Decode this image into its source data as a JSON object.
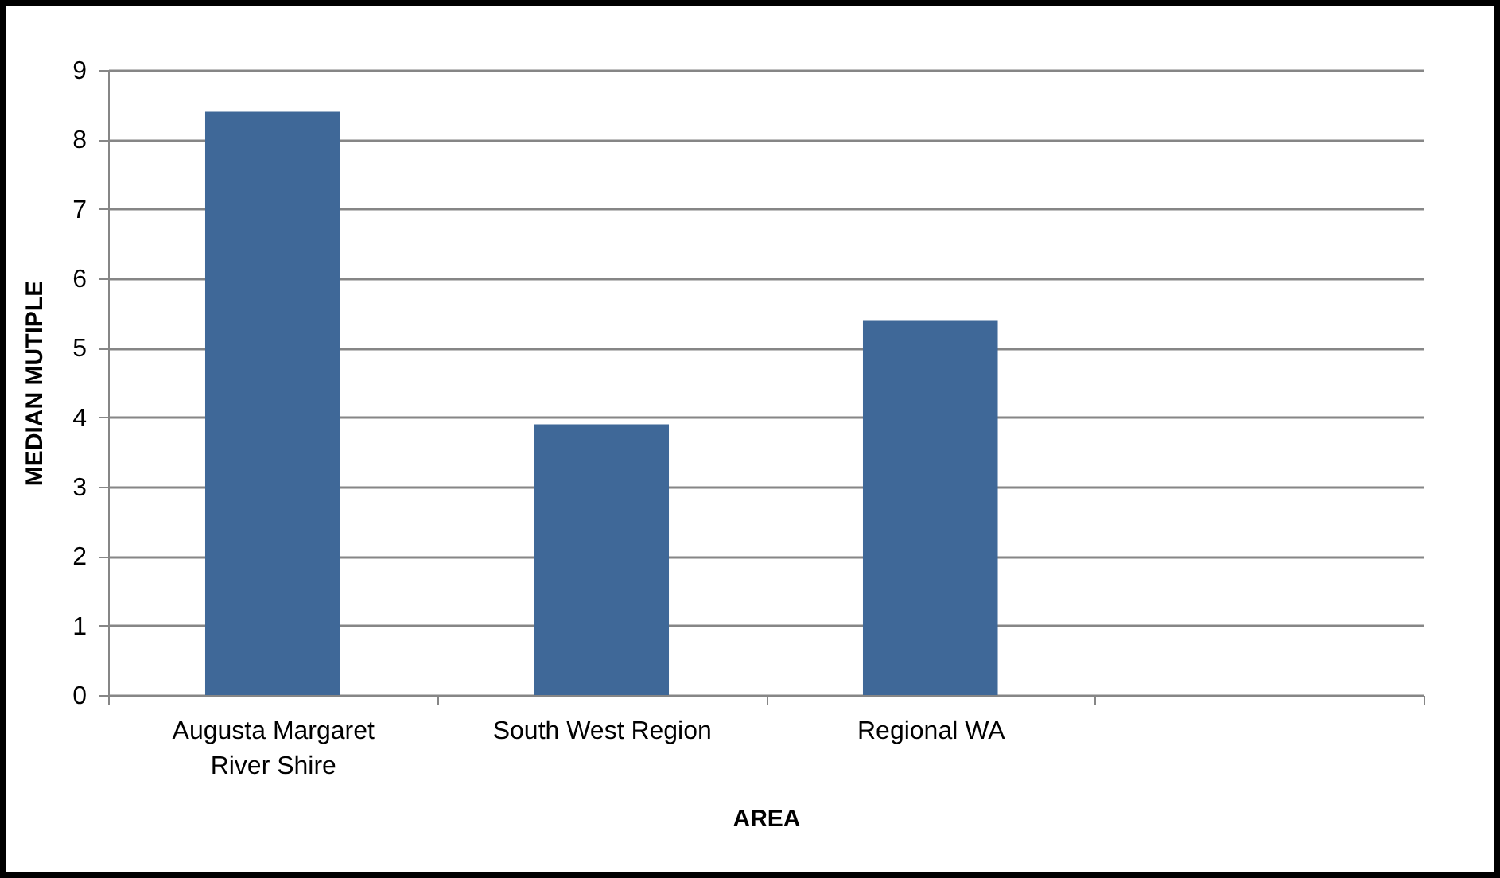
{
  "chart_data": {
    "type": "bar",
    "xlabel": "AREA",
    "ylabel": "MEDIAN MUTIPLE",
    "categories": [
      "Augusta Margaret River Shire",
      "South West Region",
      "Regional WA",
      null
    ],
    "values": [
      8.4,
      3.9,
      5.4,
      null
    ],
    "color": "#3f6898",
    "ylim": [
      0,
      9
    ],
    "yticks": [
      0,
      1,
      2,
      3,
      4,
      5,
      6,
      7,
      8,
      9
    ],
    "grid": "y"
  }
}
